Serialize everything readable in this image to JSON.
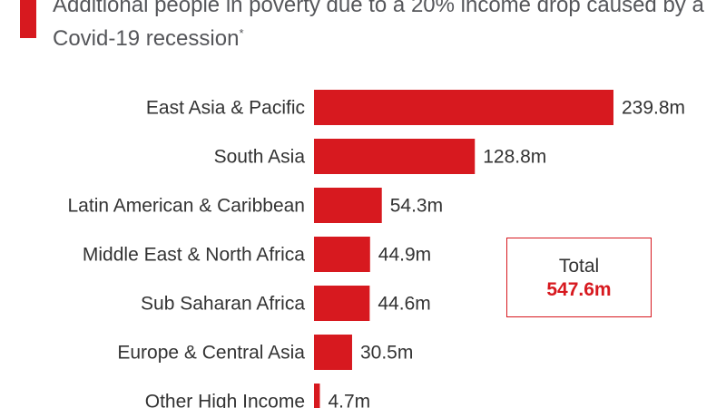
{
  "header": {
    "title": "Additional people in poverty due to a 20% income drop caused by a Covid-19 recession",
    "title_mark": "*"
  },
  "colors": {
    "accent": "#d7191f",
    "text": "#333333",
    "title": "#55565a"
  },
  "chart_data": {
    "type": "bar",
    "orientation": "horizontal",
    "title": "Additional people in poverty due to a 20% income drop caused by a Covid-19 recession",
    "unit_suffix": "m",
    "categories": [
      "East Asia & Pacific",
      "South Asia",
      "Latin American & Caribbean",
      "Middle East & North Africa",
      "Sub Saharan Africa",
      "Europe & Central Asia",
      "Other High Income"
    ],
    "values": [
      239.8,
      128.8,
      54.3,
      44.9,
      44.6,
      30.5,
      4.7
    ],
    "value_labels": [
      "239.8m",
      "128.8m",
      "54.3m",
      "44.9m",
      "44.6m",
      "30.5m",
      "4.7m"
    ],
    "xlim": [
      0,
      239.8
    ],
    "grid": false,
    "legend": "none",
    "bar_color": "#d7191f"
  },
  "total": {
    "label": "Total",
    "value": "547.6m"
  }
}
